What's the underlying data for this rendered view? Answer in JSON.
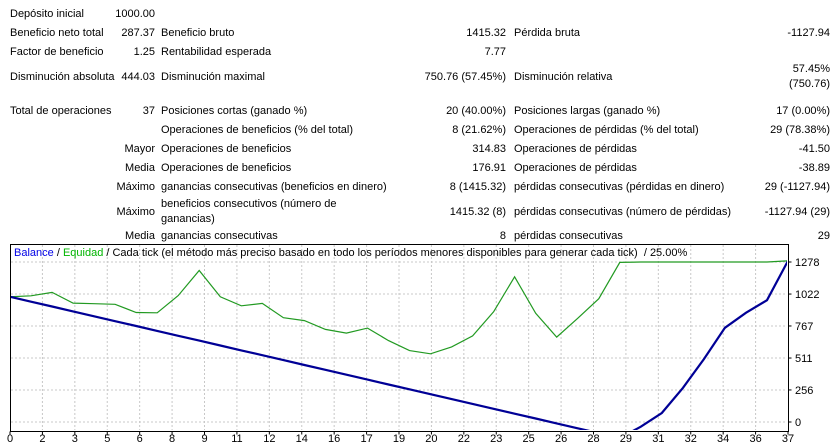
{
  "report": {
    "rows": [
      {
        "c1": "Depósito inicial",
        "c2": "1000.00",
        "c3": "",
        "c4": "",
        "c5": "",
        "c6": ""
      },
      {
        "c1": "Beneficio neto total",
        "c2": "287.37",
        "c3": "Beneficio bruto",
        "c4": "1415.32",
        "c5": "Pérdida bruta",
        "c6": "-1127.94"
      },
      {
        "c1": "Factor de beneficio",
        "c2": "1.25",
        "c3": "Rentabilidad esperada",
        "c4": "7.77",
        "c5": "",
        "c6": ""
      },
      {
        "c1": "Disminución absoluta",
        "c2": "444.03",
        "c3": "Disminución maximal",
        "c4": "750.76 (57.45%)",
        "c5": "Disminución relativa",
        "c6": "57.45% (750.76)"
      },
      {
        "c1": "Total de operaciones",
        "c2": "37",
        "c3": "Posiciones cortas (ganado %)",
        "c4": "20 (40.00%)",
        "c5": "Posiciones largas (ganado %)",
        "c6": "17 (0.00%)"
      },
      {
        "c1": "",
        "c2": "",
        "c3": "Operaciones de beneficios (% del total)",
        "c4": "8 (21.62%)",
        "c5": "Operaciones de pérdidas (% del total)",
        "c6": "29 (78.38%)"
      },
      {
        "c1": "",
        "c2": "Mayor",
        "c3": "Operaciones de beneficios",
        "c4": "314.83",
        "c5": "Operaciones de pérdidas",
        "c6": "-41.50"
      },
      {
        "c1": "",
        "c2": "Media",
        "c3": "Operaciones de beneficios",
        "c4": "176.91",
        "c5": "Operaciones de pérdidas",
        "c6": "-38.89"
      },
      {
        "c1": "",
        "c2": "Máximo",
        "c3": "ganancias consecutivas (beneficios en dinero)",
        "c4": "8 (1415.32)",
        "c5": "pérdidas consecutivas (pérdidas en dinero)",
        "c6": "29 (-1127.94)"
      },
      {
        "c1": "",
        "c2": "Máximo",
        "c3": "beneficios consecutivos (número de\nganancias)",
        "c4": "1415.32 (8)",
        "c5": "pérdidas consecutivas (número de pérdidas)",
        "c6": "-1127.94 (29)"
      },
      {
        "c1": "",
        "c2": "Media",
        "c3": "ganancias consecutivas",
        "c4": "8",
        "c5": "pérdidas consecutivas",
        "c6": "29"
      }
    ],
    "block_gap_after_row": 3
  },
  "chart": {
    "legend": {
      "parts": [
        {
          "text": "Balance",
          "color": "#0000E6"
        },
        {
          "text": " / ",
          "color": "#000000"
        },
        {
          "text": "Equidad",
          "color": "#00B400"
        },
        {
          "text": " / ",
          "color": "#000000"
        },
        {
          "text": "Cada tick (el método más preciso basado en todo los períodos menores disponibles para generar cada tick)",
          "color": "#000000"
        },
        {
          "text": "  / 25.00%",
          "color": "#000000"
        }
      ]
    },
    "colors": {
      "balance_line": "#000096",
      "equity_line": "#229A22",
      "grid": "#C8C8C8",
      "frame": "#000000",
      "background": "#FFFFFF"
    }
  },
  "chart_data": {
    "type": "line",
    "title": "Balance / Equidad",
    "x": [
      0,
      1,
      2,
      3,
      4,
      5,
      6,
      7,
      8,
      9,
      10,
      11,
      12,
      13,
      14,
      15,
      16,
      17,
      18,
      19,
      20,
      21,
      22,
      23,
      24,
      25,
      26,
      27,
      28,
      29,
      30,
      31,
      32,
      33,
      34,
      35,
      36,
      37
    ],
    "series": [
      {
        "name": "Balance",
        "color": "#000096",
        "values": [
          1000,
          961.1,
          922.2,
          883.3,
          844.4,
          805.5,
          766.6,
          727.7,
          688.8,
          649.9,
          611.1,
          572.2,
          533.3,
          494.4,
          455.5,
          416.6,
          377.7,
          338.8,
          299.9,
          261,
          222.1,
          183.2,
          144.3,
          105.5,
          66.6,
          27.7,
          -11.2,
          -50.1,
          -89,
          -127.9,
          -37.9,
          72.1,
          272.1,
          502.1,
          752.1,
          872.1,
          972.5,
          1287.4
        ]
      },
      {
        "name": "Equidad",
        "color": "#229A22",
        "values": [
          1000,
          1008,
          1035,
          950,
          945,
          940,
          875,
          872,
          1010,
          1210,
          1000,
          928,
          947,
          833,
          810,
          740,
          710,
          750,
          650,
          570,
          545,
          600,
          688,
          880,
          1160,
          868,
          678,
          828,
          985,
          1275,
          1278,
          1278,
          1278,
          1278,
          1278,
          1278,
          1278,
          1287.4
        ]
      }
    ],
    "y_ticks": [
      0,
      256,
      511,
      767,
      1022,
      1278
    ],
    "x_tick_labels": [
      "0",
      "2",
      "3",
      "5",
      "6",
      "8",
      "9",
      "11",
      "12",
      "14",
      "16",
      "17",
      "19",
      "20",
      "22",
      "23",
      "25",
      "26",
      "28",
      "29",
      "31",
      "32",
      "34",
      "36",
      "37"
    ],
    "ylim": [
      -72,
      1414
    ],
    "xlim": [
      0,
      37
    ],
    "grid": true,
    "legend_position": "top-left"
  }
}
